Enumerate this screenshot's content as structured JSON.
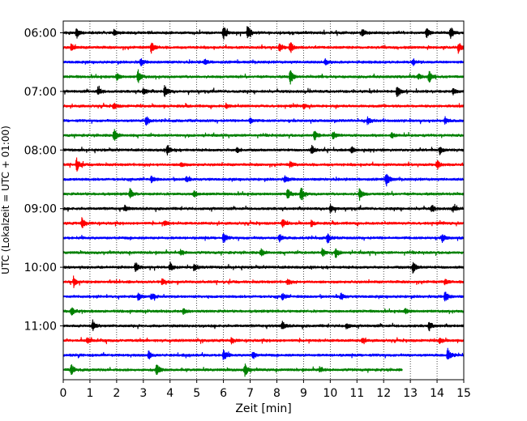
{
  "chart_data": {
    "type": "line",
    "title": "",
    "xlabel": "Zeit  [min]",
    "ylabel": "UTC (Lokalzeit = UTC + 01:00)",
    "xlim": [
      0,
      15
    ],
    "x_ticks": [
      "0",
      "1",
      "2",
      "3",
      "4",
      "5",
      "6",
      "7",
      "8",
      "9",
      "10",
      "11",
      "12",
      "13",
      "14",
      "15"
    ],
    "y_ticks": [
      "06:00",
      "07:00",
      "08:00",
      "09:00",
      "10:00",
      "11:00"
    ],
    "grid": "vertical dotted",
    "trace_interval_min": 15,
    "start_time": "06:00",
    "trace_colors": [
      "#000000",
      "#ff0000",
      "#0000ff",
      "#008000"
    ],
    "last_trace_end_min": 12.7,
    "series": [
      {
        "time": "06:00",
        "events": [
          [
            0.5,
            0.7
          ],
          [
            1.9,
            0.4
          ],
          [
            6.0,
            1.0
          ],
          [
            6.9,
            1.0
          ],
          [
            11.2,
            0.5
          ],
          [
            13.6,
            0.7
          ],
          [
            14.5,
            0.9
          ]
        ]
      },
      {
        "time": "06:15",
        "events": [
          [
            0.3,
            0.5
          ],
          [
            3.3,
            0.8
          ],
          [
            8.1,
            0.6
          ],
          [
            8.5,
            0.9
          ],
          [
            14.8,
            0.8
          ]
        ]
      },
      {
        "time": "06:30",
        "events": [
          [
            2.9,
            0.5
          ],
          [
            5.3,
            0.4
          ],
          [
            9.8,
            0.4
          ],
          [
            13.1,
            0.5
          ]
        ]
      },
      {
        "time": "06:45",
        "events": [
          [
            2.0,
            0.5
          ],
          [
            2.8,
            0.9
          ],
          [
            8.5,
            1.0
          ],
          [
            13.7,
            0.8
          ],
          [
            13.3,
            0.4
          ]
        ]
      },
      {
        "time": "07:00",
        "events": [
          [
            1.3,
            0.6
          ],
          [
            3.0,
            0.5
          ],
          [
            3.8,
            0.9
          ],
          [
            12.5,
            0.9
          ],
          [
            14.6,
            0.4
          ]
        ]
      },
      {
        "time": "07:15",
        "events": [
          [
            1.9,
            0.4
          ],
          [
            6.1,
            0.3
          ],
          [
            9.0,
            0.3
          ]
        ]
      },
      {
        "time": "07:30",
        "events": [
          [
            3.1,
            0.7
          ],
          [
            7.0,
            0.4
          ],
          [
            11.4,
            0.5
          ],
          [
            14.3,
            0.5
          ]
        ]
      },
      {
        "time": "07:45",
        "events": [
          [
            1.9,
            0.9
          ],
          [
            9.4,
            0.8
          ],
          [
            10.1,
            0.5
          ],
          [
            12.3,
            0.4
          ]
        ]
      },
      {
        "time": "08:00",
        "events": [
          [
            3.9,
            0.7
          ],
          [
            6.5,
            0.4
          ],
          [
            9.3,
            0.6
          ],
          [
            10.8,
            0.5
          ],
          [
            14.1,
            0.5
          ]
        ]
      },
      {
        "time": "08:15",
        "events": [
          [
            0.5,
            0.9
          ],
          [
            4.4,
            0.4
          ],
          [
            8.5,
            0.4
          ],
          [
            14.0,
            0.7
          ]
        ]
      },
      {
        "time": "08:30",
        "events": [
          [
            3.3,
            0.4
          ],
          [
            4.6,
            0.4
          ],
          [
            8.3,
            0.5
          ],
          [
            12.1,
            1.0
          ]
        ]
      },
      {
        "time": "08:45",
        "events": [
          [
            2.5,
            0.7
          ],
          [
            4.9,
            0.5
          ],
          [
            8.4,
            0.8
          ],
          [
            8.9,
            1.0
          ],
          [
            11.1,
            0.8
          ]
        ]
      },
      {
        "time": "09:00",
        "events": [
          [
            2.3,
            0.4
          ],
          [
            10.0,
            0.6
          ],
          [
            13.8,
            0.5
          ],
          [
            14.6,
            0.4
          ]
        ]
      },
      {
        "time": "09:15",
        "events": [
          [
            0.7,
            0.8
          ],
          [
            3.8,
            0.4
          ],
          [
            8.2,
            0.6
          ],
          [
            9.3,
            0.4
          ]
        ]
      },
      {
        "time": "09:30",
        "events": [
          [
            6.0,
            0.7
          ],
          [
            8.1,
            0.5
          ],
          [
            9.9,
            0.7
          ],
          [
            14.2,
            0.6
          ]
        ]
      },
      {
        "time": "09:45",
        "events": [
          [
            4.4,
            0.4
          ],
          [
            7.4,
            0.5
          ],
          [
            9.7,
            0.6
          ],
          [
            10.2,
            0.7
          ]
        ]
      },
      {
        "time": "10:00",
        "events": [
          [
            2.7,
            0.8
          ],
          [
            4.0,
            0.6
          ],
          [
            4.9,
            0.5
          ],
          [
            13.1,
            0.9
          ]
        ]
      },
      {
        "time": "10:15",
        "events": [
          [
            0.4,
            0.7
          ],
          [
            3.7,
            0.4
          ],
          [
            8.4,
            0.4
          ],
          [
            14.3,
            0.4
          ]
        ]
      },
      {
        "time": "10:30",
        "events": [
          [
            2.8,
            0.6
          ],
          [
            3.3,
            0.6
          ],
          [
            8.2,
            0.5
          ],
          [
            10.4,
            0.5
          ],
          [
            14.3,
            0.8
          ]
        ]
      },
      {
        "time": "10:45",
        "events": [
          [
            0.3,
            0.7
          ],
          [
            4.5,
            0.4
          ],
          [
            12.8,
            0.4
          ]
        ]
      },
      {
        "time": "11:00",
        "events": [
          [
            1.1,
            0.8
          ],
          [
            8.2,
            0.6
          ],
          [
            10.6,
            0.4
          ],
          [
            13.7,
            0.6
          ]
        ]
      },
      {
        "time": "11:15",
        "events": [
          [
            0.9,
            0.4
          ],
          [
            6.3,
            0.4
          ],
          [
            11.2,
            0.4
          ],
          [
            14.1,
            0.4
          ]
        ]
      },
      {
        "time": "11:30",
        "events": [
          [
            3.2,
            0.6
          ],
          [
            6.0,
            0.9
          ],
          [
            7.1,
            0.5
          ],
          [
            14.4,
            1.0
          ]
        ]
      },
      {
        "time": "11:45",
        "events": [
          [
            0.3,
            0.7
          ],
          [
            3.5,
            0.9
          ],
          [
            6.8,
            1.0
          ],
          [
            9.6,
            0.4
          ]
        ]
      }
    ]
  }
}
